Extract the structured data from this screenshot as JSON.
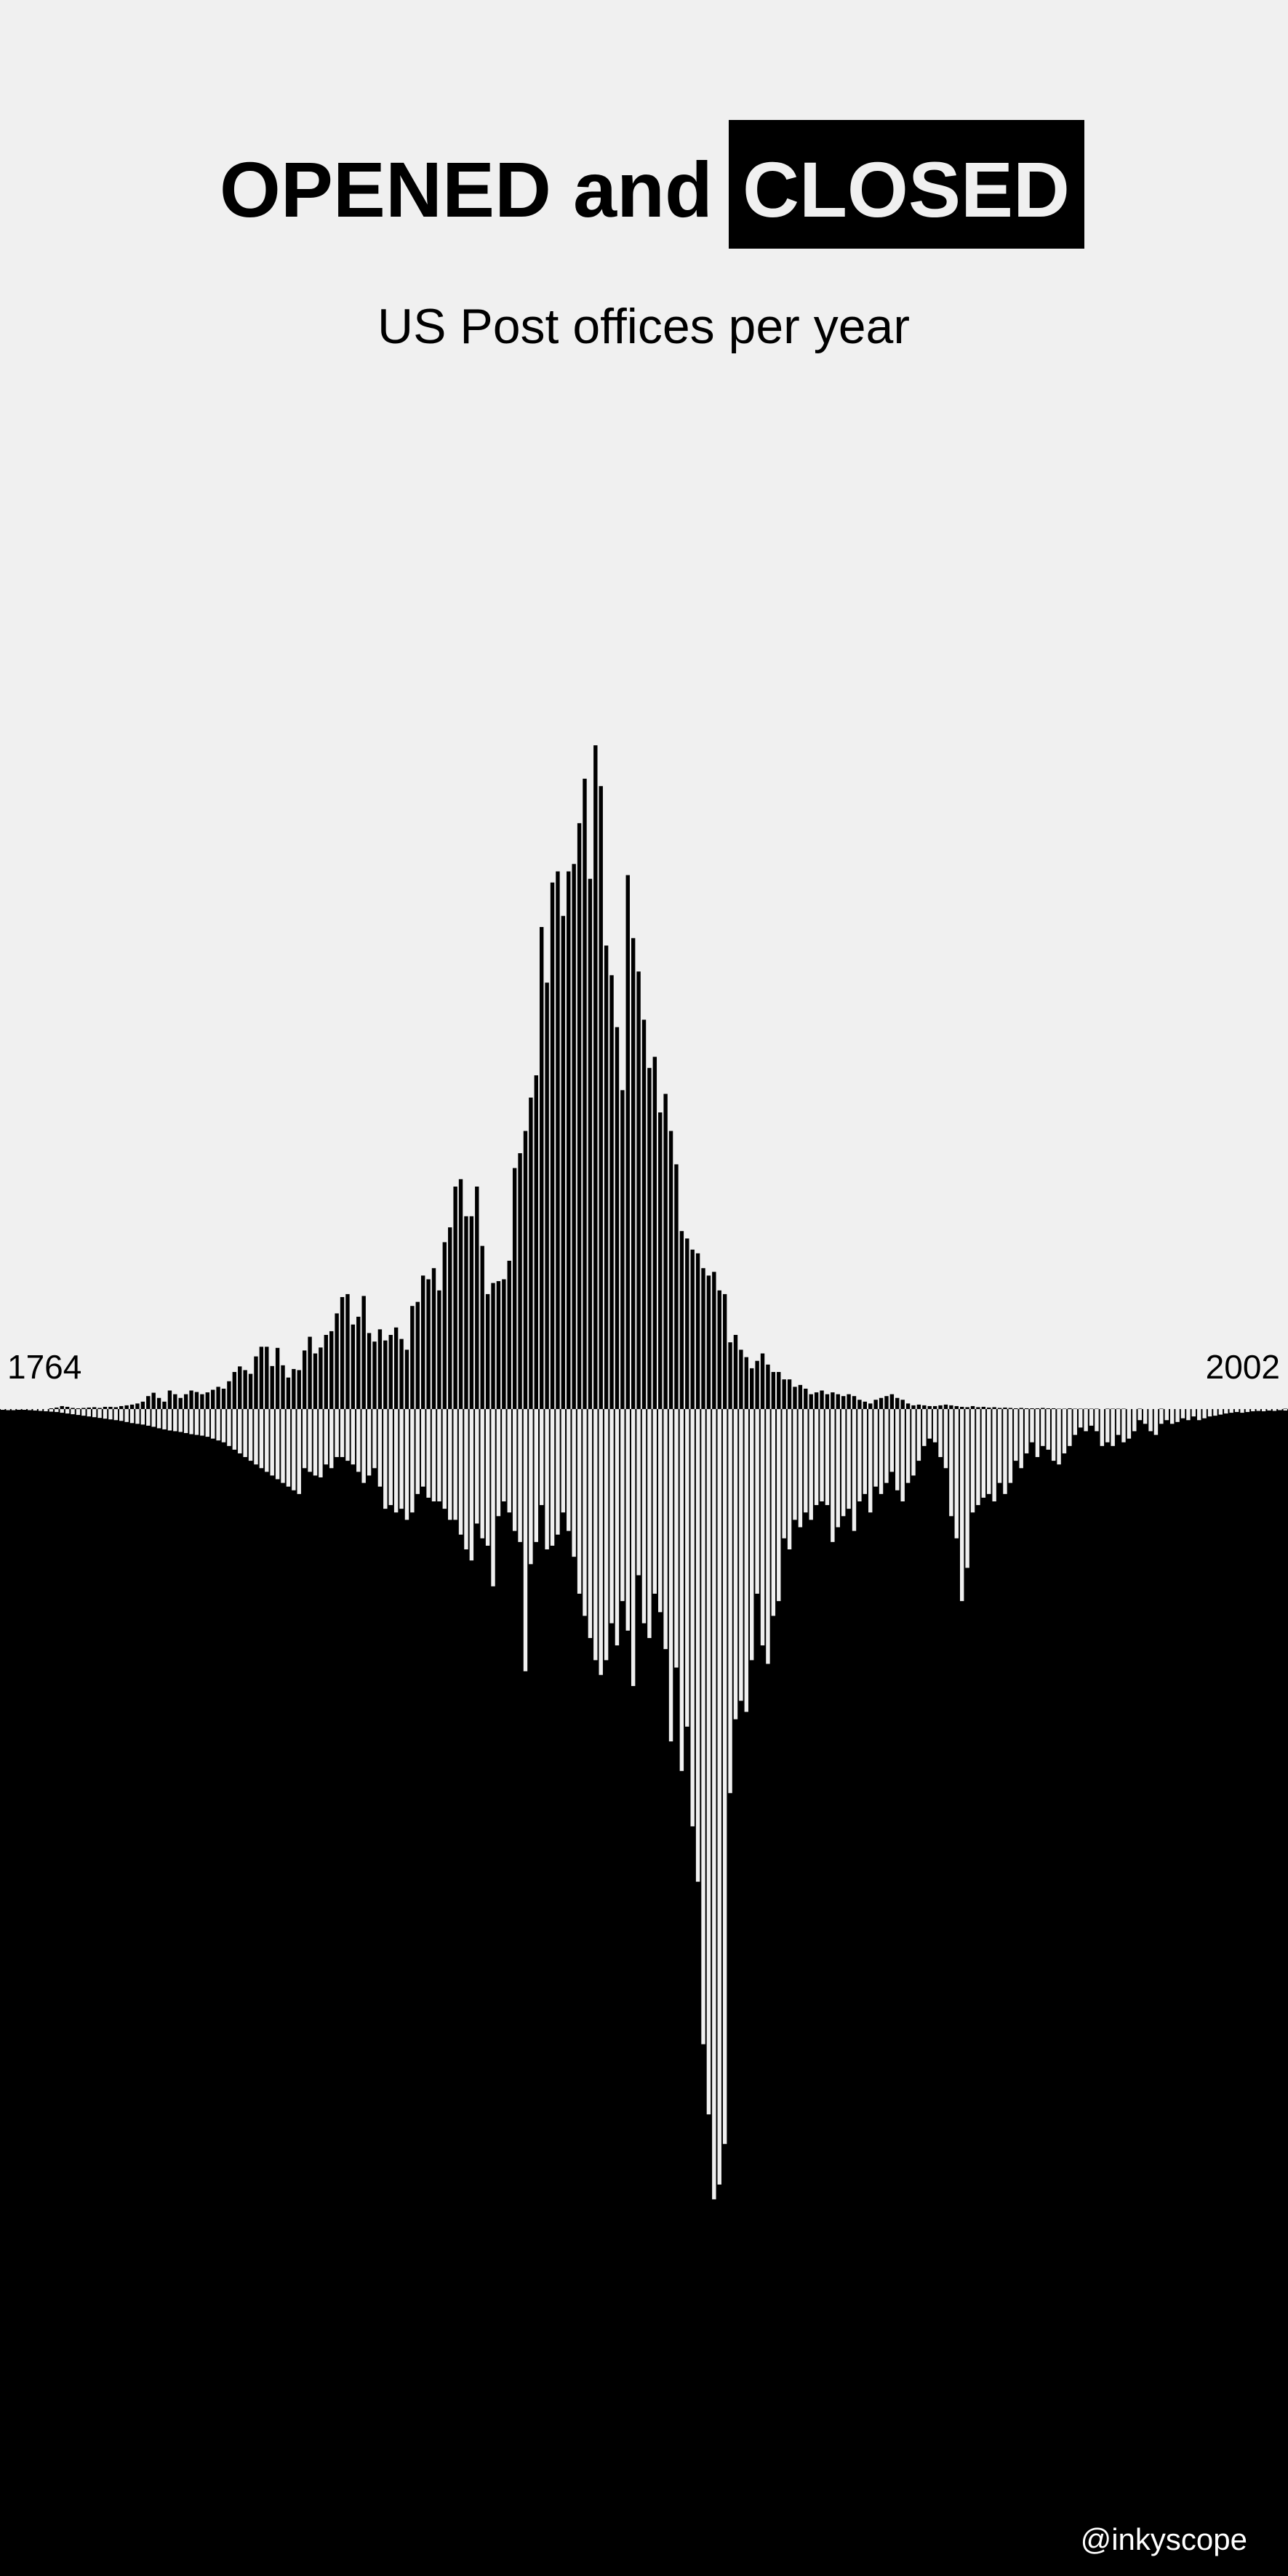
{
  "title": {
    "part1": "OPENED and",
    "part2": "CLOSED"
  },
  "subtitle": "US Post offices per year",
  "credit": "@inkyscope",
  "colors": {
    "background": "#f0f0f0",
    "opened_bar": "#000000",
    "closed_panel": "#000000",
    "closed_bar": "#f0f0f0"
  },
  "chart_data": {
    "type": "bar",
    "x_range": [
      1764,
      2002
    ],
    "tick_labels": [
      "1764",
      "2002"
    ],
    "ylim_opened": [
      0,
      1800
    ],
    "ylim_closed": [
      0,
      2150
    ],
    "grid": false,
    "legend": "none",
    "series": [
      {
        "values": [
          0,
          0,
          0,
          0,
          0,
          0,
          0,
          0,
          0,
          2,
          4,
          8,
          6,
          3,
          2,
          3,
          4,
          5,
          3,
          6,
          6,
          5,
          8,
          10,
          12,
          15,
          20,
          35,
          44,
          30,
          20,
          50,
          40,
          30,
          40,
          50,
          46,
          40,
          45,
          52,
          60,
          55,
          75,
          100,
          115,
          105,
          95,
          142,
          168,
          168,
          116,
          165,
          118,
          85,
          108,
          105,
          158,
          195,
          150,
          166,
          200,
          210,
          258,
          302,
          310,
          228,
          249,
          305,
          205,
          182,
          215,
          185,
          200,
          220,
          189,
          160,
          278,
          289,
          360,
          350,
          380,
          320,
          450,
          490,
          600,
          620,
          520,
          520,
          600,
          440,
          310,
          340,
          345,
          350,
          400,
          650,
          690,
          750,
          840,
          900,
          1300,
          1150,
          1420,
          1450,
          1330,
          1450,
          1470,
          1580,
          1700,
          1430,
          1790,
          1680,
          1250,
          1170,
          1030,
          860,
          1440,
          1270,
          1180,
          1050,
          920,
          950,
          800,
          850,
          750,
          660,
          480,
          460,
          430,
          420,
          380,
          360,
          370,
          320,
          310,
          180,
          200,
          160,
          140,
          110,
          130,
          150,
          120,
          100,
          100,
          80,
          80,
          60,
          65,
          55,
          40,
          45,
          50,
          40,
          45,
          40,
          35,
          40,
          35,
          25,
          20,
          15,
          25,
          30,
          35,
          40,
          30,
          25,
          15,
          10,
          12,
          10,
          8,
          8,
          10,
          12,
          10,
          8,
          6,
          5,
          8,
          5,
          6,
          4,
          5,
          3,
          4,
          3,
          2,
          3,
          2,
          2,
          2,
          3,
          2,
          2,
          1,
          1,
          2,
          1,
          1,
          1,
          1,
          1,
          0,
          1,
          1,
          1,
          1,
          0,
          0,
          1,
          0,
          0,
          0,
          1,
          0,
          0,
          0,
          0,
          0,
          0,
          0,
          0,
          0,
          0,
          0,
          0,
          0,
          0,
          0,
          0,
          0,
          0,
          0,
          0,
          0,
          0,
          1
        ]
      },
      {
        "values": [
          2,
          3,
          3,
          2,
          2,
          3,
          4,
          5,
          6,
          7,
          8,
          10,
          12,
          14,
          16,
          18,
          20,
          22,
          24,
          26,
          28,
          30,
          32,
          35,
          38,
          40,
          42,
          45,
          48,
          52,
          55,
          58,
          60,
          62,
          65,
          68,
          70,
          72,
          75,
          80,
          85,
          90,
          100,
          110,
          120,
          130,
          140,
          150,
          160,
          170,
          180,
          190,
          200,
          210,
          220,
          230,
          160,
          170,
          180,
          185,
          150,
          160,
          130,
          130,
          140,
          150,
          170,
          200,
          180,
          160,
          210,
          270,
          260,
          280,
          270,
          300,
          280,
          230,
          210,
          240,
          250,
          250,
          270,
          300,
          300,
          340,
          380,
          410,
          310,
          350,
          370,
          480,
          290,
          250,
          280,
          330,
          360,
          710,
          420,
          360,
          260,
          380,
          370,
          340,
          280,
          330,
          400,
          500,
          560,
          620,
          680,
          720,
          680,
          580,
          640,
          520,
          600,
          750,
          450,
          580,
          620,
          500,
          550,
          650,
          900,
          700,
          980,
          860,
          1130,
          1280,
          1720,
          1910,
          2140,
          2100,
          1990,
          1040,
          840,
          790,
          820,
          680,
          500,
          640,
          690,
          560,
          520,
          350,
          380,
          300,
          320,
          280,
          300,
          260,
          250,
          260,
          360,
          320,
          290,
          270,
          330,
          250,
          230,
          280,
          210,
          230,
          200,
          170,
          220,
          250,
          200,
          180,
          140,
          100,
          80,
          90,
          130,
          160,
          290,
          350,
          520,
          430,
          280,
          260,
          240,
          230,
          250,
          200,
          230,
          200,
          140,
          160,
          120,
          90,
          130,
          100,
          110,
          140,
          150,
          120,
          100,
          70,
          50,
          60,
          45,
          60,
          100,
          90,
          100,
          70,
          90,
          80,
          60,
          30,
          40,
          60,
          70,
          40,
          30,
          40,
          35,
          25,
          30,
          20,
          30,
          25,
          20,
          18,
          15,
          12,
          10,
          8,
          10,
          8,
          6,
          5,
          6,
          4,
          5,
          3,
          4
        ]
      }
    ]
  }
}
